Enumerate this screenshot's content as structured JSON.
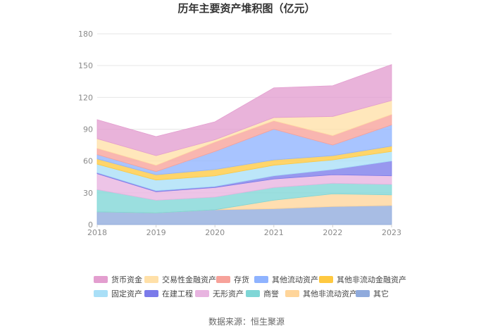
{
  "chart_data": {
    "type": "area",
    "stacked": true,
    "title": "历年主要资产堆积图（亿元）",
    "x": [
      "2018",
      "2019",
      "2020",
      "2021",
      "2022",
      "2023"
    ],
    "ylim": [
      0,
      180
    ],
    "yticks": [
      0,
      30,
      60,
      90,
      120,
      150,
      180
    ],
    "grid": true,
    "legend_position": "bottom",
    "series": [
      {
        "name": "其它",
        "color": "#8FAADC",
        "values": [
          12,
          11,
          14,
          15,
          17,
          18
        ]
      },
      {
        "name": "其他非流动资产",
        "color": "#FFD59A",
        "values": [
          0,
          0,
          0,
          8,
          12,
          10
        ]
      },
      {
        "name": "商誉",
        "color": "#7FD6D6",
        "values": [
          21,
          12,
          12,
          12,
          10,
          10
        ]
      },
      {
        "name": "无形资产",
        "color": "#E8B4E0",
        "values": [
          15,
          8,
          9,
          8,
          8,
          8
        ]
      },
      {
        "name": "在建工程",
        "color": "#7B7BEA",
        "values": [
          1,
          1,
          1,
          3,
          5,
          14
        ]
      },
      {
        "name": "固定资产",
        "color": "#A9DFF7",
        "values": [
          8,
          10,
          10,
          10,
          9,
          9
        ]
      },
      {
        "name": "其他非流动金融资产",
        "color": "#FFC940",
        "values": [
          5,
          5,
          6,
          5,
          4,
          5
        ]
      },
      {
        "name": "其他流动资产",
        "color": "#8FB3FF",
        "values": [
          4,
          3,
          17,
          29,
          10,
          20
        ]
      },
      {
        "name": "存货",
        "color": "#F7A29A",
        "values": [
          6,
          6,
          9,
          8,
          9,
          10
        ]
      },
      {
        "name": "交易性金融资产",
        "color": "#FFE0A8",
        "values": [
          9,
          9,
          2,
          3,
          18,
          13
        ]
      },
      {
        "name": "货币资金",
        "color": "#E39ECF",
        "values": [
          18,
          18,
          17,
          28,
          29,
          34
        ]
      }
    ],
    "legend_order": [
      "货币资金",
      "交易性金融资产",
      "存货",
      "其他流动资产",
      "其他非流动金融资产",
      "固定资产",
      "在建工程",
      "无形资产",
      "商誉",
      "其他非流动资产",
      "其它"
    ],
    "source": "数据来源：恒生聚源"
  }
}
